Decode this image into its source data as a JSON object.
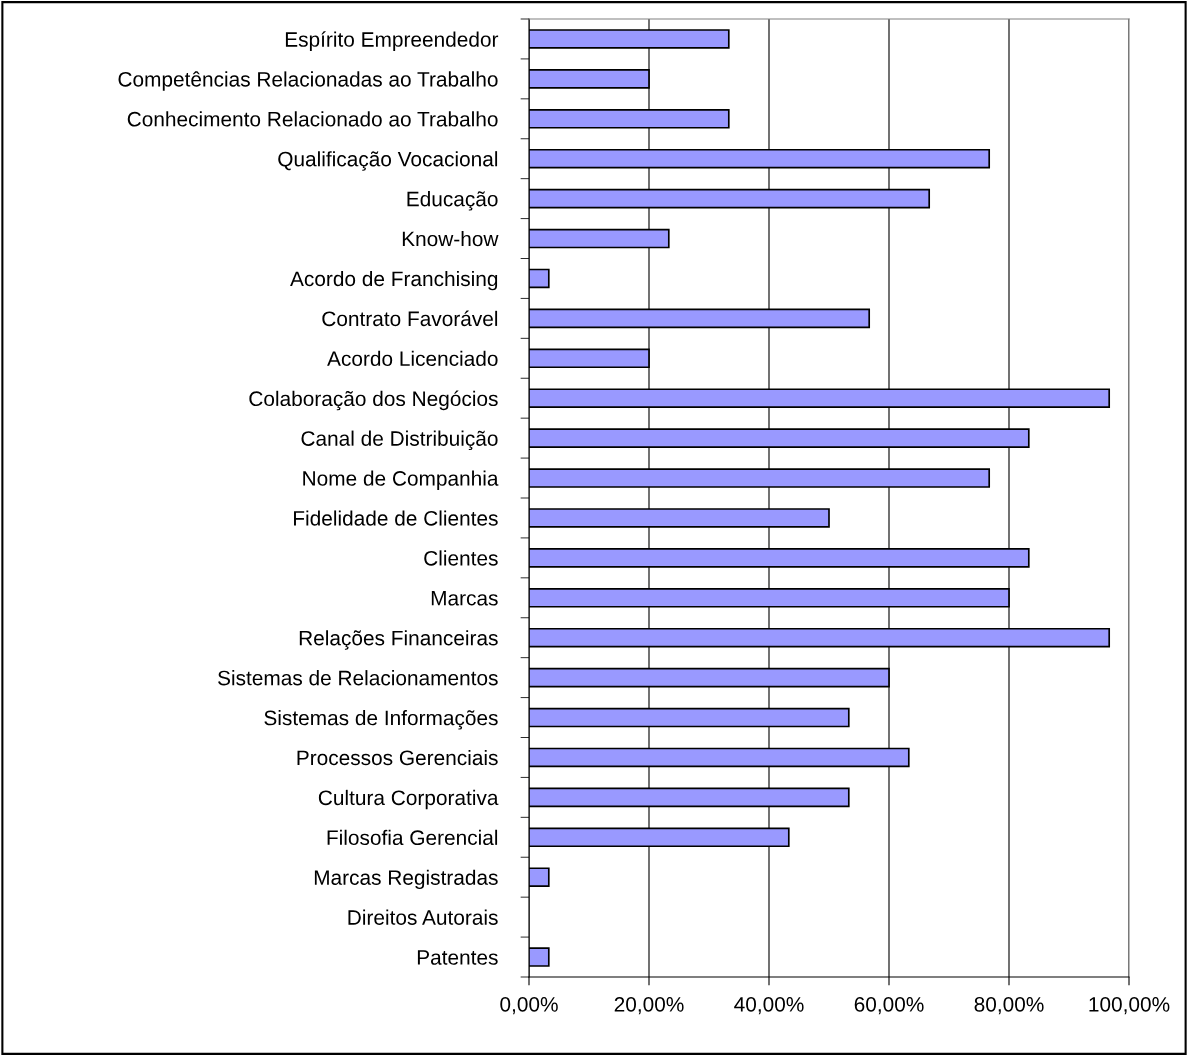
{
  "chart_data": {
    "type": "bar",
    "orientation": "horizontal",
    "categories": [
      "Espírito Empreendedor",
      "Competências Relacionadas ao Trabalho",
      "Conhecimento Relacionado ao Trabalho",
      "Qualificação Vocacional",
      "Educação",
      "Know-how",
      "Acordo de Franchising",
      "Contrato Favorável",
      "Acordo Licenciado",
      "Colaboração dos Negócios",
      "Canal de Distribuição",
      "Nome de Companhia",
      "Fidelidade de Clientes",
      "Clientes",
      "Marcas",
      "Relações Financeiras",
      "Sistemas de Relacionamentos",
      "Sistemas de Informações",
      "Processos Gerenciais",
      "Cultura Corporativa",
      "Filosofia Gerencial",
      "Marcas Registradas",
      "Direitos Autorais",
      "Patentes"
    ],
    "values": [
      33.3,
      20,
      33.3,
      76.7,
      66.7,
      23.3,
      3.3,
      56.7,
      20,
      96.7,
      83.3,
      76.7,
      50,
      83.3,
      80,
      96.7,
      60,
      53.3,
      63.3,
      53.3,
      43.3,
      3.3,
      0,
      3.3
    ],
    "color": "#9999ff",
    "xlim": [
      0,
      100
    ],
    "xticks": [
      {
        "value": 0,
        "label": "0,00%"
      },
      {
        "value": 20,
        "label": "20,00%"
      },
      {
        "value": 40,
        "label": "40,00%"
      },
      {
        "value": 60,
        "label": "60,00%"
      },
      {
        "value": 80,
        "label": "80,00%"
      },
      {
        "value": 100,
        "label": "100,00%"
      }
    ],
    "grid": "x",
    "legend": false
  }
}
